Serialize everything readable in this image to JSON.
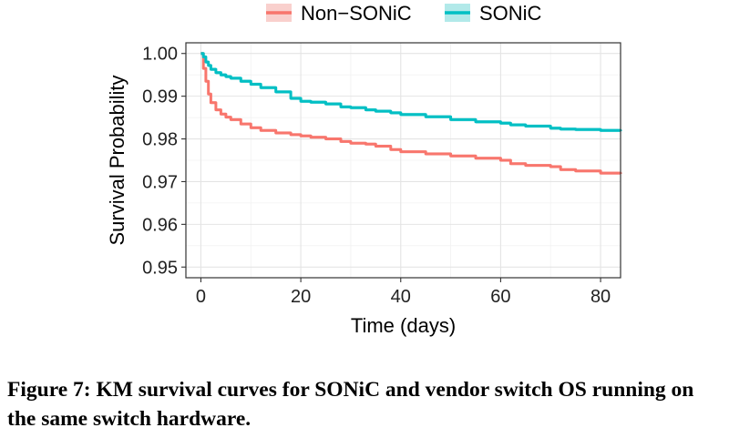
{
  "chart_data": {
    "type": "line",
    "title": "",
    "xlabel": "Time (days)",
    "ylabel": "Survival Probability",
    "xlim": [
      -3,
      84
    ],
    "ylim": [
      0.9475,
      1.0025
    ],
    "x_ticks": [
      0,
      20,
      40,
      60,
      80
    ],
    "x_tick_labels": [
      "0",
      "20",
      "40",
      "60",
      "80"
    ],
    "y_ticks": [
      0.95,
      0.96,
      0.97,
      0.98,
      0.99,
      1.0
    ],
    "y_tick_labels": [
      "0.95",
      "0.96",
      "0.97",
      "0.98",
      "0.99",
      "1.00"
    ],
    "grid": true,
    "legend_position": "top",
    "series": [
      {
        "name": "Non−SONiC",
        "color": "#f8766d",
        "band_color": "#f8c4c0",
        "x": [
          0,
          0.5,
          1,
          1.5,
          2,
          3,
          4,
          5,
          6,
          8,
          10,
          12,
          15,
          18,
          20,
          22,
          25,
          28,
          30,
          33,
          35,
          38,
          40,
          45,
          50,
          55,
          60,
          62,
          65,
          70,
          72,
          75,
          80,
          84
        ],
        "y": [
          1.0,
          0.9965,
          0.9935,
          0.9905,
          0.9885,
          0.9868,
          0.9858,
          0.9851,
          0.9845,
          0.9835,
          0.9826,
          0.982,
          0.9814,
          0.981,
          0.9807,
          0.9804,
          0.98,
          0.9794,
          0.979,
          0.9788,
          0.9783,
          0.9775,
          0.977,
          0.9765,
          0.976,
          0.9755,
          0.975,
          0.9742,
          0.9738,
          0.9735,
          0.9728,
          0.9725,
          0.972,
          0.9718
        ]
      },
      {
        "name": "SONiC",
        "color": "#00bfc4",
        "band_color": "#9fe4e4",
        "x": [
          0,
          0.5,
          1,
          1.5,
          2,
          3,
          4,
          5,
          6,
          8,
          10,
          12,
          15,
          18,
          20,
          22,
          25,
          28,
          30,
          33,
          35,
          38,
          40,
          45,
          50,
          55,
          60,
          62,
          65,
          70,
          72,
          75,
          80,
          84
        ],
        "y": [
          1.0,
          0.9992,
          0.998,
          0.9972,
          0.9963,
          0.9955,
          0.995,
          0.9946,
          0.9942,
          0.9935,
          0.9928,
          0.992,
          0.991,
          0.9895,
          0.9888,
          0.9886,
          0.9882,
          0.9875,
          0.9873,
          0.9868,
          0.9865,
          0.9861,
          0.9857,
          0.9852,
          0.9845,
          0.984,
          0.9837,
          0.9833,
          0.983,
          0.9825,
          0.9823,
          0.9822,
          0.982,
          0.9818
        ]
      }
    ]
  },
  "caption": {
    "label": "Figure 7:",
    "text": " KM survival curves for SONiC and vendor switch OS running on the same switch hardware."
  }
}
